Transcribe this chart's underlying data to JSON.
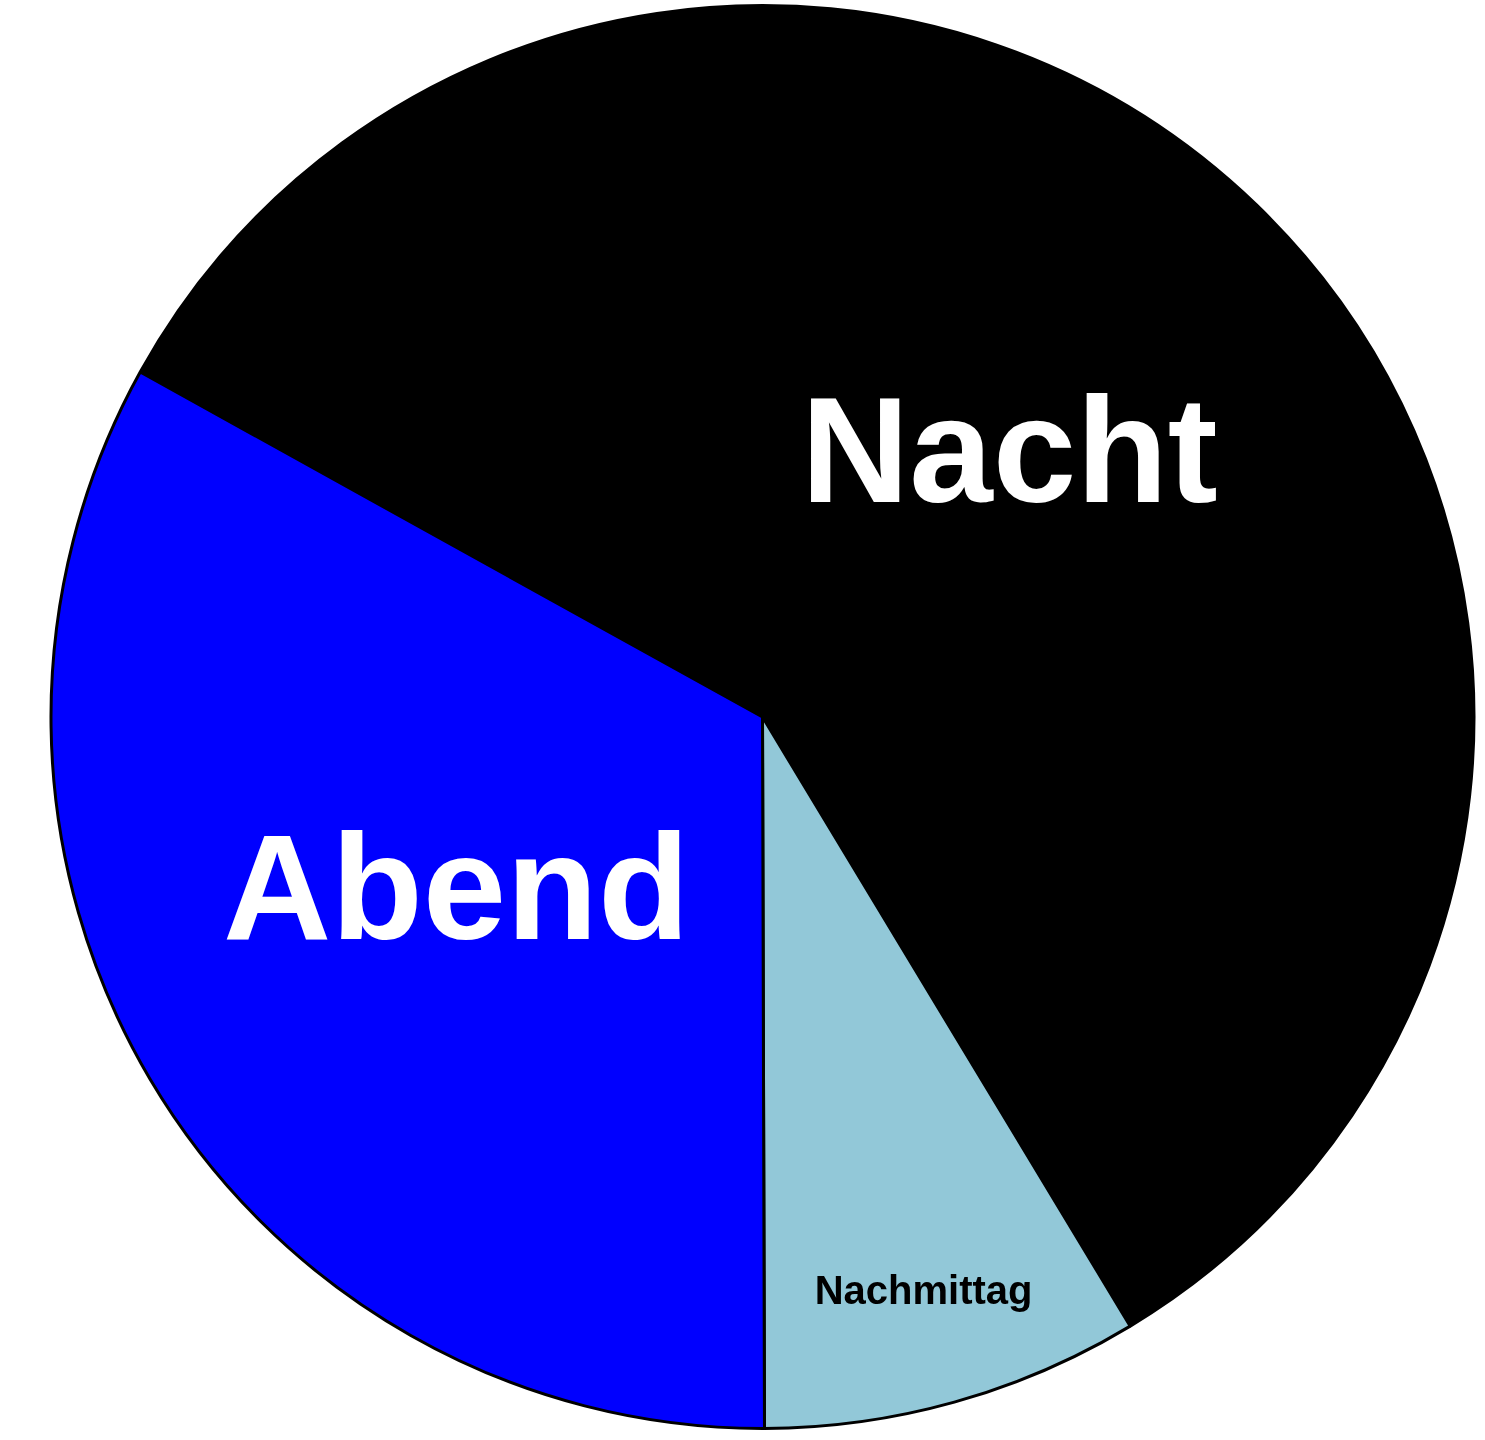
{
  "chart_data": {
    "type": "pie",
    "categories": [
      "Nacht",
      "Nachmittag",
      "Abend"
    ],
    "values": [
      58.3,
      8.6,
      33.1
    ],
    "colors": [
      "#000000",
      "#92c8d8",
      "#0000ff"
    ],
    "legend": false
  }
}
